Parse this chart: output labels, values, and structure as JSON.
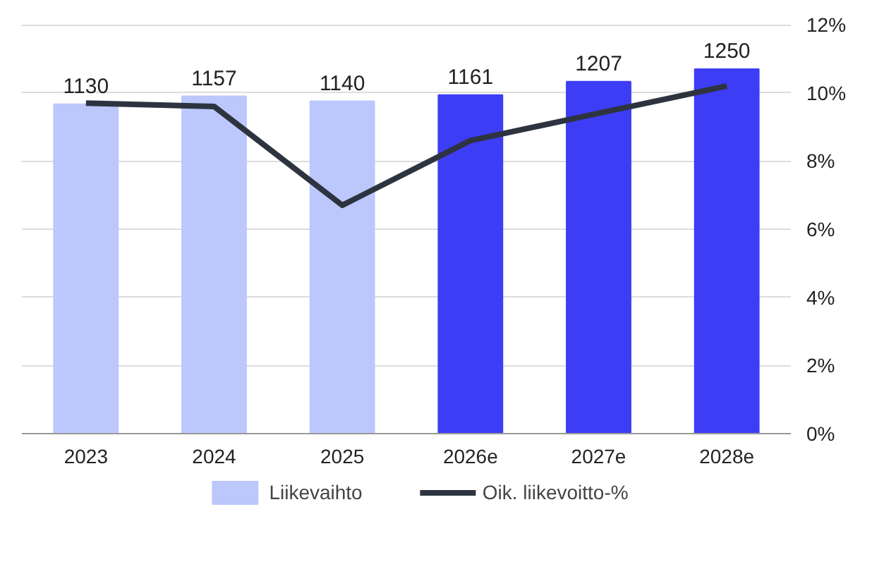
{
  "chart_data": {
    "type": "bar",
    "categories": [
      "2023",
      "2024",
      "2025",
      "2026e",
      "2027e",
      "2028e"
    ],
    "ylim": [
      0,
      12
    ],
    "yticks": [
      {
        "value": 0,
        "label": "0%"
      },
      {
        "value": 2,
        "label": "2%"
      },
      {
        "value": 4,
        "label": "4%"
      },
      {
        "value": 6,
        "label": "6%"
      },
      {
        "value": 8,
        "label": "8%"
      },
      {
        "value": 10,
        "label": "10%"
      },
      {
        "value": 12,
        "label": "12%"
      }
    ],
    "grid": "y",
    "legend": "bottom",
    "series": [
      {
        "name": "Liikevaihto",
        "axis": "y2",
        "value_labels": [
          "1130",
          "1157",
          "1140",
          "1161",
          "1207",
          "1250"
        ],
        "color": "#bcc8fb",
        "colors": [
          "#bcc8fb",
          "#bcc8fb",
          "#bcc8fb",
          "#3d3df5",
          "#3d3df5",
          "#3d3df5"
        ],
        "values": [
          1130,
          1157,
          1140,
          1161,
          1207,
          1250
        ]
      },
      {
        "name": "Oik. liikevoitto-%",
        "type": "line",
        "color": "#2d3440",
        "values": [
          9.7,
          9.6,
          6.7,
          8.6,
          9.4,
          10.2
        ]
      }
    ]
  }
}
